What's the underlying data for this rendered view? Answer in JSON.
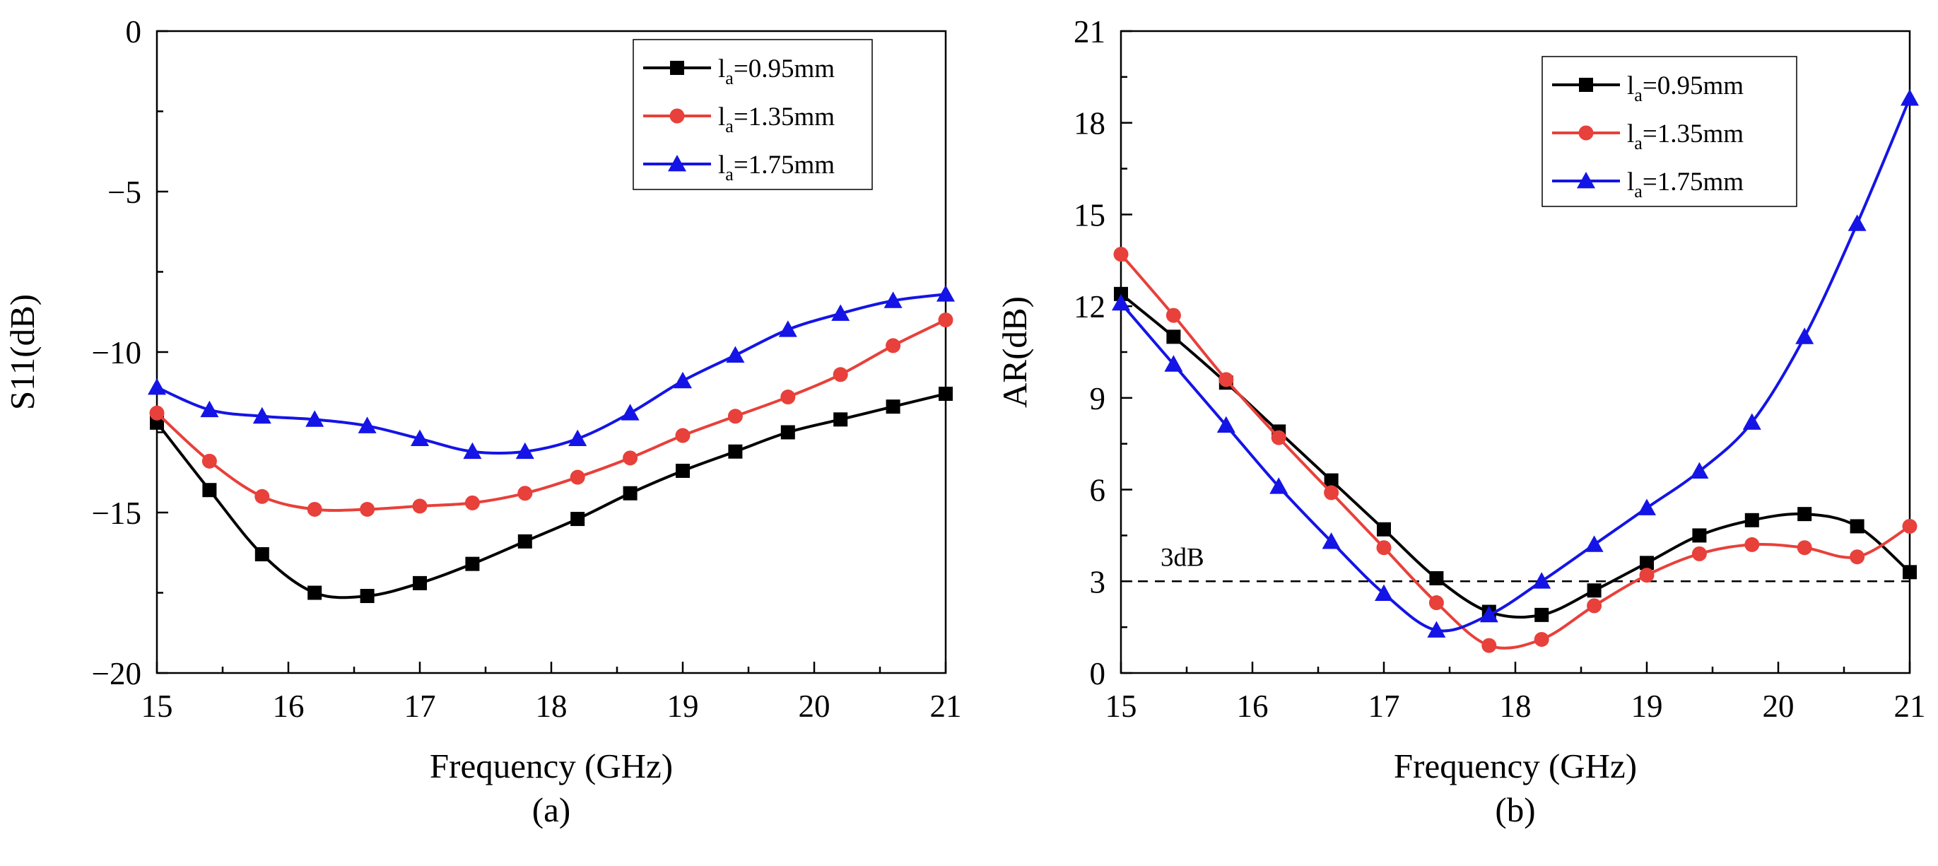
{
  "chart_data": [
    {
      "type": "line",
      "panel_label": "(a)",
      "xlabel": "Frequency (GHz)",
      "ylabel": "S11(dB)",
      "xlim": [
        15,
        21
      ],
      "ylim": [
        -20,
        0
      ],
      "xticks": [
        15,
        16,
        17,
        18,
        19,
        20,
        21
      ],
      "yticks": [
        -20,
        -15,
        -10,
        -5,
        0
      ],
      "ytick_labels": [
        "−20",
        "−15",
        "−10",
        "−5",
        "0"
      ],
      "legend_position": "top-right",
      "series": [
        {
          "name_prefix": "l",
          "name_sub": "a",
          "name_suffix": "=0.95mm",
          "color": "#000000",
          "marker": "square",
          "x": [
            15,
            15.4,
            15.8,
            16.2,
            16.6,
            17,
            17.4,
            17.8,
            18.2,
            18.6,
            19,
            19.4,
            19.8,
            20.2,
            20.6,
            21
          ],
          "y": [
            -12.2,
            -14.3,
            -16.3,
            -17.5,
            -17.6,
            -17.2,
            -16.6,
            -15.9,
            -15.2,
            -14.4,
            -13.7,
            -13.1,
            -12.5,
            -12.1,
            -11.7,
            -11.3
          ]
        },
        {
          "name_prefix": "l",
          "name_sub": "a",
          "name_suffix": "=1.35mm",
          "color": "#e8403a",
          "marker": "circle",
          "x": [
            15,
            15.4,
            15.8,
            16.2,
            16.6,
            17,
            17.4,
            17.8,
            18.2,
            18.6,
            19,
            19.4,
            19.8,
            20.2,
            20.6,
            21
          ],
          "y": [
            -11.9,
            -13.4,
            -14.5,
            -14.9,
            -14.9,
            -14.8,
            -14.7,
            -14.4,
            -13.9,
            -13.3,
            -12.6,
            -12.0,
            -11.4,
            -10.7,
            -9.8,
            -9.0
          ]
        },
        {
          "name_prefix": "l",
          "name_sub": "a",
          "name_suffix": "=1.75mm",
          "color": "#1414e6",
          "marker": "triangle",
          "x": [
            15,
            15.4,
            15.8,
            16.2,
            16.6,
            17,
            17.4,
            17.8,
            18.2,
            18.6,
            19,
            19.4,
            19.8,
            20.2,
            20.6,
            21
          ],
          "y": [
            -11.1,
            -11.8,
            -12.0,
            -12.1,
            -12.3,
            -12.7,
            -13.1,
            -13.1,
            -12.7,
            -11.9,
            -10.9,
            -10.1,
            -9.3,
            -8.8,
            -8.4,
            -8.2
          ]
        }
      ]
    },
    {
      "type": "line",
      "panel_label": "(b)",
      "xlabel": "Frequency (GHz)",
      "ylabel": "AR(dB)",
      "xlim": [
        15,
        21
      ],
      "ylim": [
        0,
        21
      ],
      "xticks": [
        15,
        16,
        17,
        18,
        19,
        20,
        21
      ],
      "yticks": [
        0,
        3,
        6,
        9,
        12,
        15,
        18,
        21
      ],
      "ytick_labels": [
        "0",
        "3",
        "6",
        "9",
        "12",
        "15",
        "18",
        "21"
      ],
      "legend_position": "top-right",
      "reference_line": {
        "y": 3,
        "label": "3dB",
        "style": "dashed"
      },
      "series": [
        {
          "name_prefix": "l",
          "name_sub": "a",
          "name_suffix": "=0.95mm",
          "color": "#000000",
          "marker": "square",
          "x": [
            15,
            15.4,
            15.8,
            16.2,
            16.6,
            17,
            17.4,
            17.8,
            18.2,
            18.6,
            19,
            19.4,
            19.8,
            20.2,
            20.6,
            21
          ],
          "y": [
            12.4,
            11.0,
            9.5,
            7.9,
            6.3,
            4.7,
            3.1,
            2.0,
            1.9,
            2.7,
            3.6,
            4.5,
            5.0,
            5.2,
            4.8,
            3.3
          ]
        },
        {
          "name_prefix": "l",
          "name_sub": "a",
          "name_suffix": "=1.35mm",
          "color": "#e8403a",
          "marker": "circle",
          "x": [
            15,
            15.4,
            15.8,
            16.2,
            16.6,
            17,
            17.4,
            17.8,
            18.2,
            18.6,
            19,
            19.4,
            19.8,
            20.2,
            20.6,
            21
          ],
          "y": [
            13.7,
            11.7,
            9.6,
            7.7,
            5.9,
            4.1,
            2.3,
            0.9,
            1.1,
            2.2,
            3.2,
            3.9,
            4.2,
            4.1,
            3.8,
            4.8
          ]
        },
        {
          "name_prefix": "l",
          "name_sub": "a",
          "name_suffix": "=1.75mm",
          "color": "#1414e6",
          "marker": "triangle",
          "x": [
            15,
            15.4,
            15.8,
            16.2,
            16.6,
            17,
            17.4,
            17.8,
            18.2,
            18.6,
            19,
            19.4,
            19.8,
            20.2,
            20.6,
            21
          ],
          "y": [
            12.1,
            10.1,
            8.1,
            6.1,
            4.3,
            2.6,
            1.4,
            1.9,
            3.0,
            4.2,
            5.4,
            6.6,
            8.2,
            11.0,
            14.7,
            18.8
          ]
        }
      ]
    }
  ]
}
